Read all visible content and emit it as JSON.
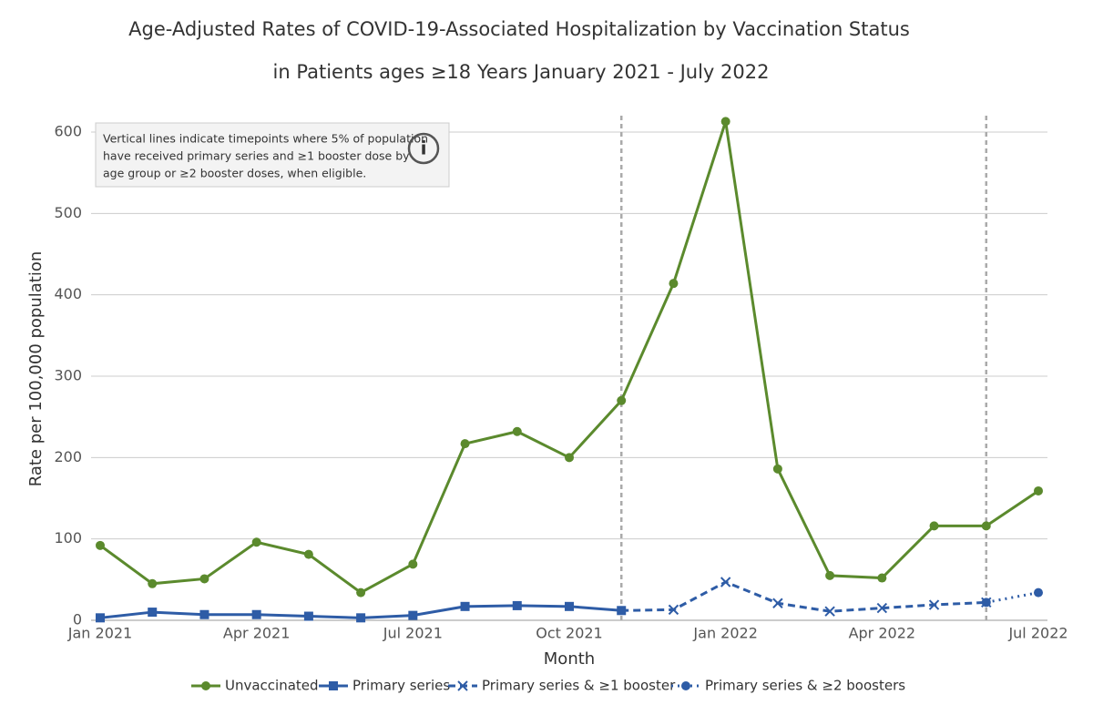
{
  "chart_data": {
    "type": "line",
    "title": "Age-Adjusted Rates of COVID-19-Associated Hospitalization by Vaccination Status",
    "subtitle": "in Patients ages ≥18 Years January 2021 - July 2022",
    "x_label": "Month",
    "y_label": "Rate per 100,000 population",
    "annotation": [
      "Vertical lines indicate timepoints where 5% of population",
      "have received primary series and ≥1 booster dose by",
      "age group or ≥2 booster doses, when eligible."
    ],
    "annotation_icon": "i",
    "categories": [
      "Jan 2021",
      null,
      null,
      "Apr 2021",
      null,
      null,
      "Jul 2021",
      null,
      null,
      "Oct 2021",
      null,
      null,
      "Jan 2022",
      null,
      null,
      "Apr 2022",
      null,
      null,
      "Jul 2022"
    ],
    "vertical_lines": [
      10,
      17
    ],
    "ylim": [
      0,
      600
    ],
    "yticks": [
      0,
      100,
      200,
      300,
      400,
      500,
      600
    ],
    "grid": true,
    "legend": "bottom",
    "series": [
      {
        "name": "Unvaccinated",
        "color": "#5b8a2d",
        "marker": "circle",
        "dash": "solid",
        "values": [
          92,
          45,
          51,
          96,
          81,
          34,
          69,
          217,
          232,
          200,
          270,
          414,
          613,
          186,
          55,
          52,
          116,
          116,
          159
        ]
      },
      {
        "name": "Primary series",
        "color": "#2e5ca6",
        "marker": "square",
        "dash": "solid",
        "values": [
          3,
          10,
          7,
          7,
          5,
          3,
          6,
          17,
          18,
          17,
          12,
          null,
          null,
          null,
          null,
          null,
          null,
          null,
          null
        ]
      },
      {
        "name": "Primary series & ≥1 booster",
        "color": "#2e5ca6",
        "marker": "x",
        "dash": "dashed",
        "values": [
          null,
          null,
          null,
          null,
          null,
          null,
          null,
          null,
          null,
          null,
          12,
          13,
          47,
          21,
          11,
          15,
          19,
          22,
          null
        ]
      },
      {
        "name": "Primary series & ≥2 boosters",
        "color": "#2e5ca6",
        "marker": "circle",
        "dash": "dotted",
        "values": [
          null,
          null,
          null,
          null,
          null,
          null,
          null,
          null,
          null,
          null,
          null,
          null,
          null,
          null,
          null,
          null,
          null,
          22,
          34
        ]
      }
    ]
  }
}
